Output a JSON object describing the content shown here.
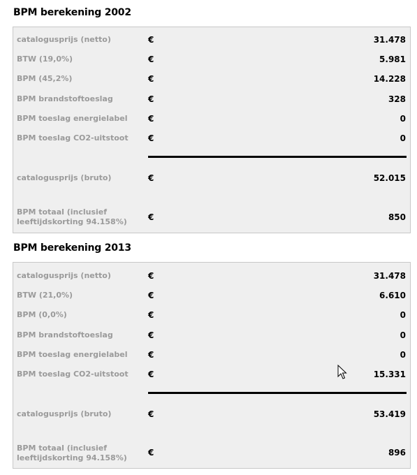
{
  "sections": [
    {
      "title": "BPM berekening 2002",
      "currency": "€",
      "rows": [
        {
          "label": "catalogusprijs (netto)",
          "value": "31.478"
        },
        {
          "label": "BTW (19,0%)",
          "value": "5.981"
        },
        {
          "label": "BPM (45,2%)",
          "value": "14.228"
        },
        {
          "label": "BPM brandstoftoeslag",
          "value": "328"
        },
        {
          "label": "BPM toeslag energielabel",
          "value": "0"
        },
        {
          "label": "BPM toeslag CO2-uitstoot",
          "value": "0"
        }
      ],
      "gross": {
        "label": "catalogusprijs (bruto)",
        "value": "52.015"
      },
      "total": {
        "label_line1": "BPM totaal (inclusief",
        "label_line2": "leeftijdskorting 94.158%)",
        "value": "850"
      }
    },
    {
      "title": "BPM berekening 2013",
      "currency": "€",
      "rows": [
        {
          "label": "catalogusprijs (netto)",
          "value": "31.478"
        },
        {
          "label": "BTW (21,0%)",
          "value": "6.610"
        },
        {
          "label": "BPM (0,0%)",
          "value": "0"
        },
        {
          "label": "BPM brandstoftoeslag",
          "value": "0"
        },
        {
          "label": "BPM toeslag energielabel",
          "value": "0"
        },
        {
          "label": "BPM toeslag CO2-uitstoot",
          "value": "15.331"
        }
      ],
      "gross": {
        "label": "catalogusprijs (bruto)",
        "value": "53.419"
      },
      "total": {
        "label_line1": "BPM totaal (inclusief",
        "label_line2": "leeftijdskorting 94.158%)",
        "value": "896"
      }
    }
  ],
  "icons": {
    "cursor": "mouse-pointer-icon"
  }
}
